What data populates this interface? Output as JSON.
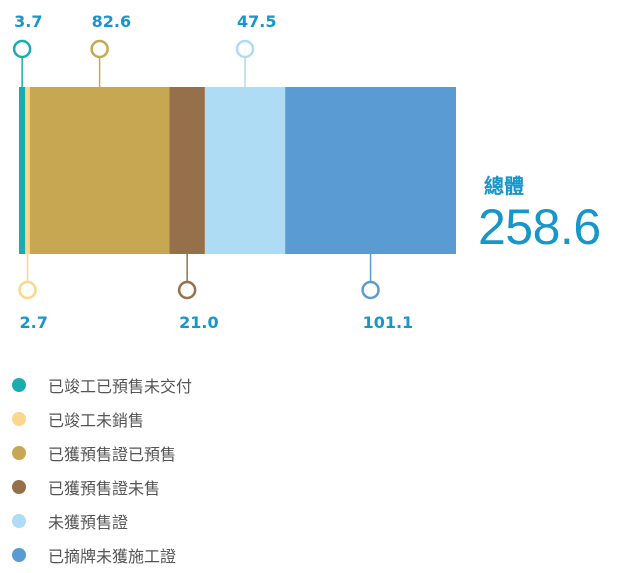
{
  "chart_data": {
    "type": "bar",
    "orientation": "horizontal-stacked",
    "categories": [
      "已竣工已預售未交付",
      "已竣工未銷售",
      "已獲預售證已預售",
      "已獲預售證未售",
      "未獲預售證",
      "已摘牌未獲施工證"
    ],
    "values": [
      3.7,
      2.7,
      82.6,
      21.0,
      47.5,
      101.1
    ],
    "value_labels": [
      "3.7",
      "2.7",
      "82.6",
      "21.0",
      "47.5",
      "101.1"
    ],
    "label_positions": [
      "top",
      "bottom",
      "top",
      "bottom",
      "top",
      "bottom"
    ],
    "colors": [
      "#1bacb0",
      "#fcd68a",
      "#c8a752",
      "#95704b",
      "#aedcf4",
      "#5b9bd3"
    ],
    "total_label": "總體",
    "total_value": "258.6",
    "legend_placement": "bottom-left",
    "text_color": "#1796c9"
  }
}
